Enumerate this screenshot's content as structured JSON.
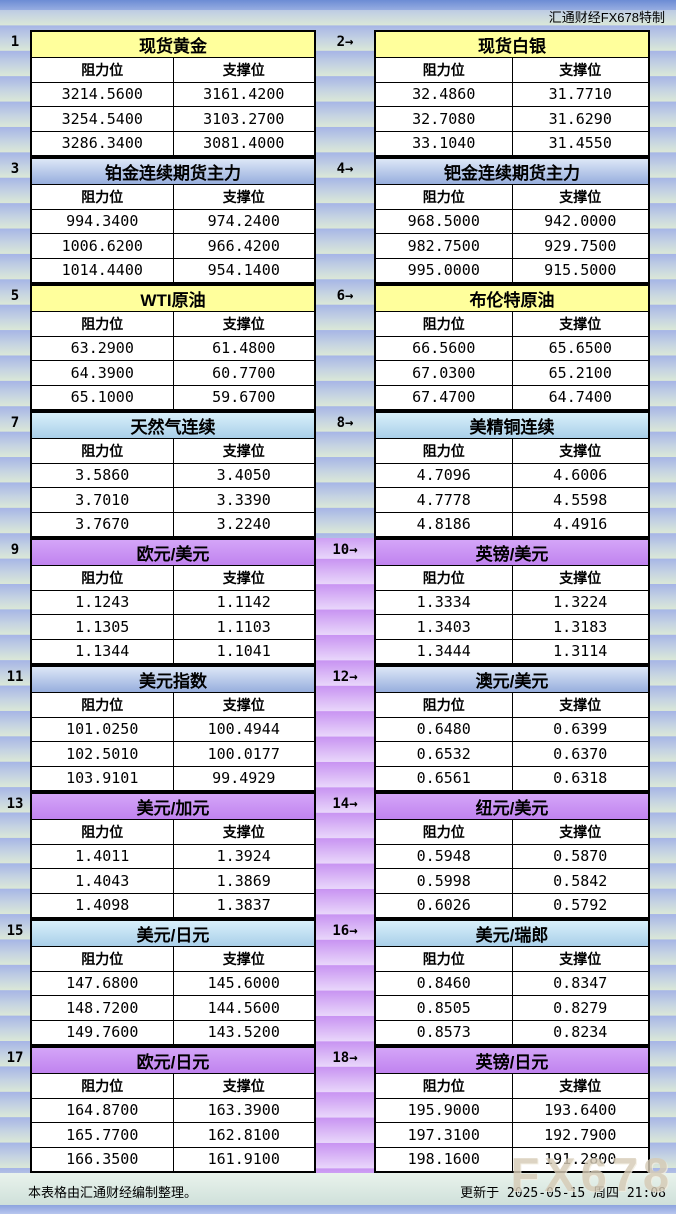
{
  "header": {
    "brand": "汇通财经FX678特制"
  },
  "labels": {
    "res": "阻力位",
    "sup": "支撑位"
  },
  "footer": {
    "note": "本表格由汇通财经编制整理。",
    "updated": "更新于 2025-05-15 周四 21:08",
    "watermark": "FX678"
  },
  "colors": {
    "yellow_header": "#FFFF99",
    "blue_header": "#97AEDD",
    "cyan_header": "#A9CFE9",
    "purple_header": "#C083EF",
    "stripe_blue": "#A6B5E6",
    "stripe_green": "#DBE8D7",
    "stripe_purple": "#C893F2",
    "cell_bg": "#FFFFFF",
    "grid_border": "#000000"
  },
  "sections": [
    {
      "left": {
        "no": "1",
        "title": "现货黄金",
        "rows": [
          [
            "3214.5600",
            "3161.4200"
          ],
          [
            "3254.5400",
            "3103.2700"
          ],
          [
            "3286.3400",
            "3081.4000"
          ]
        ]
      },
      "right": {
        "no": "2→",
        "title": "现货白银",
        "rows": [
          [
            "32.4860",
            "31.7710"
          ],
          [
            "32.7080",
            "31.6290"
          ],
          [
            "33.1040",
            "31.4550"
          ]
        ]
      }
    },
    {
      "left": {
        "no": "3",
        "title": "铂金连续期货主力",
        "rows": [
          [
            "994.3400",
            "974.2400"
          ],
          [
            "1006.6200",
            "966.4200"
          ],
          [
            "1014.4400",
            "954.1400"
          ]
        ]
      },
      "right": {
        "no": "4→",
        "title": "钯金连续期货主力",
        "rows": [
          [
            "968.5000",
            "942.0000"
          ],
          [
            "982.7500",
            "929.7500"
          ],
          [
            "995.0000",
            "915.5000"
          ]
        ]
      }
    },
    {
      "left": {
        "no": "5",
        "title": "WTI原油",
        "rows": [
          [
            "63.2900",
            "61.4800"
          ],
          [
            "64.3900",
            "60.7700"
          ],
          [
            "65.1000",
            "59.6700"
          ]
        ]
      },
      "right": {
        "no": "6→",
        "title": "布伦特原油",
        "rows": [
          [
            "66.5600",
            "65.6500"
          ],
          [
            "67.0300",
            "65.2100"
          ],
          [
            "67.4700",
            "64.7400"
          ]
        ]
      }
    },
    {
      "left": {
        "no": "7",
        "title": "天然气连续",
        "rows": [
          [
            "3.5860",
            "3.4050"
          ],
          [
            "3.7010",
            "3.3390"
          ],
          [
            "3.7670",
            "3.2240"
          ]
        ]
      },
      "right": {
        "no": "8→",
        "title": "美精铜连续",
        "rows": [
          [
            "4.7096",
            "4.6006"
          ],
          [
            "4.7778",
            "4.5598"
          ],
          [
            "4.8186",
            "4.4916"
          ]
        ]
      }
    },
    {
      "left": {
        "no": "9",
        "title": "欧元/美元",
        "rows": [
          [
            "1.1243",
            "1.1142"
          ],
          [
            "1.1305",
            "1.1103"
          ],
          [
            "1.1344",
            "1.1041"
          ]
        ]
      },
      "right": {
        "no": "10→",
        "title": "英镑/美元",
        "rows": [
          [
            "1.3334",
            "1.3224"
          ],
          [
            "1.3403",
            "1.3183"
          ],
          [
            "1.3444",
            "1.3114"
          ]
        ]
      }
    },
    {
      "left": {
        "no": "11",
        "title": "美元指数",
        "rows": [
          [
            "101.0250",
            "100.4944"
          ],
          [
            "102.5010",
            "100.0177"
          ],
          [
            "103.9101",
            "99.4929"
          ]
        ]
      },
      "right": {
        "no": "12→",
        "title": "澳元/美元",
        "rows": [
          [
            "0.6480",
            "0.6399"
          ],
          [
            "0.6532",
            "0.6370"
          ],
          [
            "0.6561",
            "0.6318"
          ]
        ]
      }
    },
    {
      "left": {
        "no": "13",
        "title": "美元/加元",
        "rows": [
          [
            "1.4011",
            "1.3924"
          ],
          [
            "1.4043",
            "1.3869"
          ],
          [
            "1.4098",
            "1.3837"
          ]
        ]
      },
      "right": {
        "no": "14→",
        "title": "纽元/美元",
        "rows": [
          [
            "0.5948",
            "0.5870"
          ],
          [
            "0.5998",
            "0.5842"
          ],
          [
            "0.6026",
            "0.5792"
          ]
        ]
      }
    },
    {
      "left": {
        "no": "15",
        "title": "美元/日元",
        "rows": [
          [
            "147.6800",
            "145.6000"
          ],
          [
            "148.7200",
            "144.5600"
          ],
          [
            "149.7600",
            "143.5200"
          ]
        ]
      },
      "right": {
        "no": "16→",
        "title": "美元/瑞郎",
        "rows": [
          [
            "0.8460",
            "0.8347"
          ],
          [
            "0.8505",
            "0.8279"
          ],
          [
            "0.8573",
            "0.8234"
          ]
        ]
      }
    },
    {
      "left": {
        "no": "17",
        "title": "欧元/日元",
        "rows": [
          [
            "164.8700",
            "163.3900"
          ],
          [
            "165.7700",
            "162.8100"
          ],
          [
            "166.3500",
            "161.9100"
          ]
        ]
      },
      "right": {
        "no": "18→",
        "title": "英镑/日元",
        "rows": [
          [
            "195.9000",
            "193.6400"
          ],
          [
            "197.3100",
            "192.7900"
          ],
          [
            "198.1600",
            "191.2800"
          ]
        ]
      }
    }
  ]
}
